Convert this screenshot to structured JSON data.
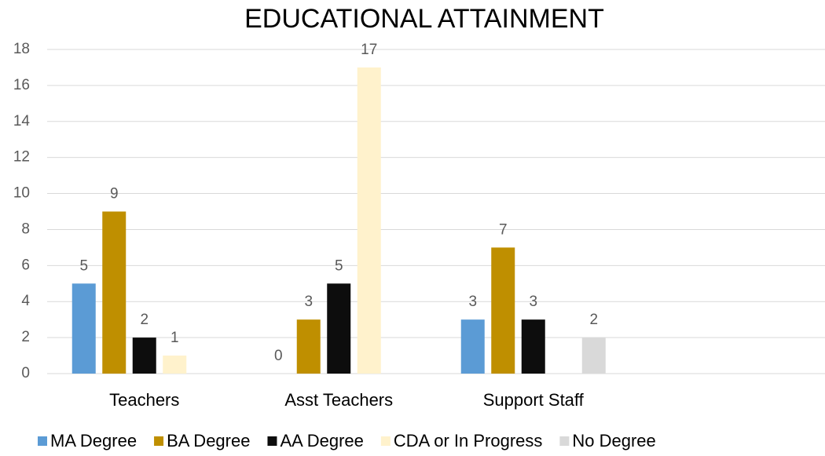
{
  "chart_data": {
    "type": "bar",
    "title": "EDUCATIONAL ATTAINMENT",
    "categories": [
      "Teachers",
      "Asst Teachers",
      "Support Staff",
      null
    ],
    "series": [
      {
        "name": "MA Degree",
        "color": "#5b9bd5",
        "values": [
          5,
          0,
          3,
          null
        ]
      },
      {
        "name": "BA Degree",
        "color": "#bf8f00",
        "values": [
          9,
          3,
          7,
          null
        ]
      },
      {
        "name": "AA Degree",
        "color": "#0d0d0d",
        "values": [
          2,
          5,
          3,
          null
        ]
      },
      {
        "name": "CDA or In Progress",
        "color": "#fff2cc",
        "values": [
          1,
          17,
          null,
          null
        ]
      },
      {
        "name": "No Degree",
        "color": "#d9d9d9",
        "values": [
          null,
          null,
          2,
          null
        ]
      }
    ],
    "ylim": [
      0,
      18
    ],
    "yticks": [
      0,
      2,
      4,
      6,
      8,
      10,
      12,
      14,
      16,
      18
    ],
    "grid": true,
    "legend": "bottom"
  }
}
